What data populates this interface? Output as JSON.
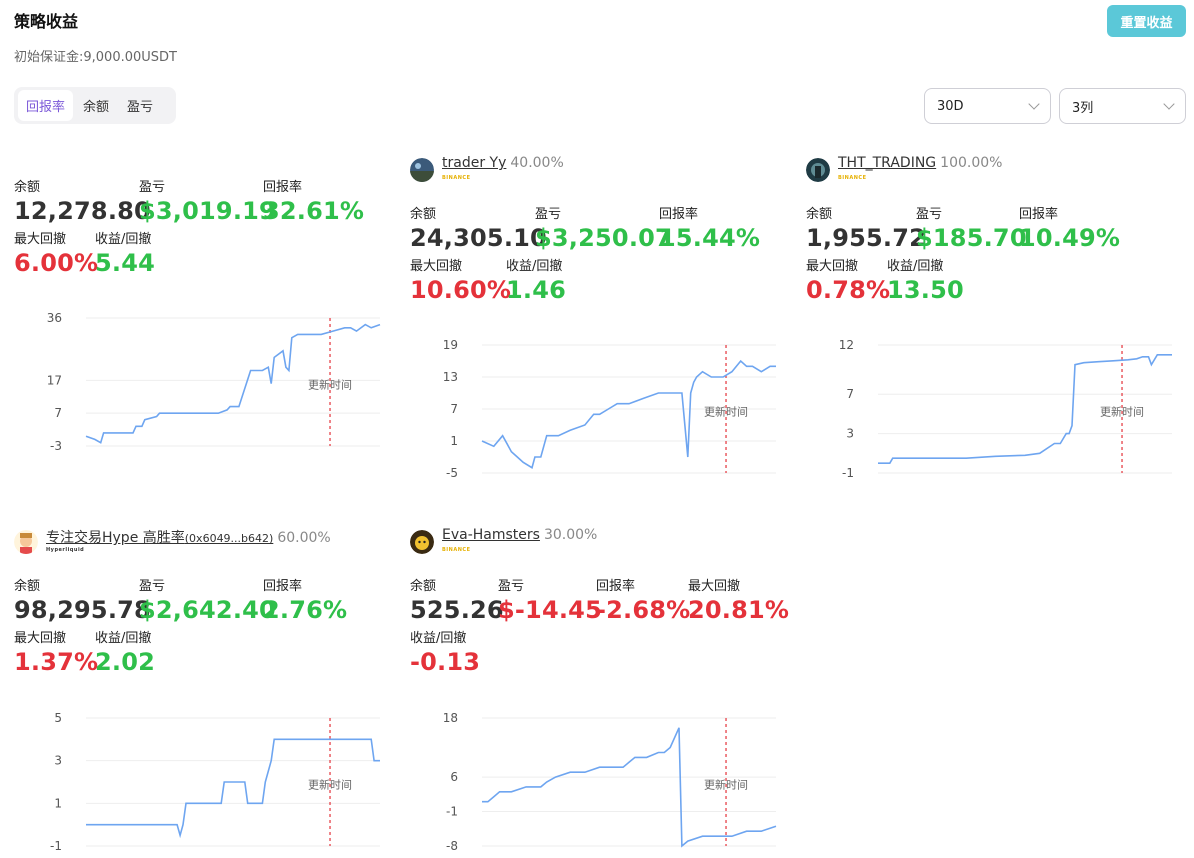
{
  "header": {
    "title": "策略收益",
    "subtitle": "初始保证金:9,000.00USDT",
    "reset_button": "重置收益"
  },
  "tabs": [
    {
      "label": "回报率",
      "active": true
    },
    {
      "label": "余额",
      "active": false
    },
    {
      "label": "盈亏",
      "active": false
    }
  ],
  "filters": {
    "period": "30D",
    "columns": "3列"
  },
  "labels": {
    "balance": "余额",
    "pnl": "盈亏",
    "roi": "回报率",
    "max_drawdown": "最大回撤",
    "return_drawdown": "收益/回撤",
    "update_time": "更新时间"
  },
  "colors": {
    "green": "#2fbf4a",
    "red": "#e4323a",
    "accent": "#7b57d8",
    "reset_button": "#5bc8d8",
    "line": "#6ea5f0",
    "marker": "#e4323a"
  },
  "cards": [
    {
      "name": "",
      "allocation": "",
      "exchange": "",
      "balance": "12,278.80",
      "pnl": "$3,019.19",
      "roi": "32.61%",
      "max_drawdown": "6.00%",
      "return_drawdown": "5.44",
      "pnl_color": "green",
      "roi_color": "green",
      "rd_color": "green"
    },
    {
      "name": "trader Yy",
      "allocation": "40.00%",
      "exchange": "BINANCE",
      "avatar": "avatar-landscape",
      "balance": "24,305.10",
      "pnl": "$3,250.07",
      "roi": "15.44%",
      "max_drawdown": "10.60%",
      "return_drawdown": "1.46",
      "pnl_color": "green",
      "roi_color": "green",
      "rd_color": "green"
    },
    {
      "name": "THT_TRADING",
      "allocation": "100.00%",
      "exchange": "BINANCE",
      "avatar": "avatar-dark",
      "balance": "1,955.72",
      "pnl": "$185.70",
      "roi": "10.49%",
      "max_drawdown": "0.78%",
      "return_drawdown": "13.50",
      "pnl_color": "green",
      "roi_color": "green",
      "rd_color": "green"
    },
    {
      "name": "专注交易Hype 高胜率",
      "address": "(0x6049...b642)",
      "allocation": "60.00%",
      "exchange": "Hyperliquid",
      "avatar": "avatar-cartoon",
      "balance": "98,295.78",
      "pnl": "$2,642.40",
      "roi": "2.76%",
      "max_drawdown": "1.37%",
      "return_drawdown": "2.02",
      "pnl_color": "green",
      "roi_color": "green",
      "rd_color": "green"
    },
    {
      "name": "Eva-Hamsters",
      "allocation": "30.00%",
      "exchange": "BINANCE",
      "avatar": "avatar-hamster",
      "balance": "525.26",
      "pnl": "$-14.45",
      "roi": "-2.68%",
      "max_drawdown": "20.81%",
      "return_drawdown": "-0.13",
      "pnl_color": "red",
      "roi_color": "red",
      "rd_color": "red"
    }
  ],
  "chart_data": [
    {
      "type": "line",
      "title": "",
      "xlabel": "",
      "ylabel": "",
      "yticks": [
        36,
        17,
        7,
        -3
      ],
      "ylim": [
        -3,
        36
      ],
      "grid": true,
      "update_marker_x": 0.83,
      "series": [
        {
          "name": "",
          "x": [
            0,
            0.03,
            0.05,
            0.06,
            0.07,
            0.1,
            0.16,
            0.17,
            0.19,
            0.2,
            0.24,
            0.25,
            0.3,
            0.4,
            0.45,
            0.48,
            0.49,
            0.52,
            0.56,
            0.6,
            0.62,
            0.63,
            0.64,
            0.67,
            0.68,
            0.69,
            0.7,
            0.72,
            0.76,
            0.8,
            0.84,
            0.88,
            0.9,
            0.92,
            0.95,
            0.97,
            1.0
          ],
          "y": [
            0,
            -1,
            -2,
            1,
            1,
            1,
            1,
            3,
            3,
            5,
            6,
            7,
            7,
            7,
            7,
            8,
            9,
            9,
            20,
            20,
            21,
            16,
            24,
            26,
            21,
            20,
            30,
            31,
            31,
            31,
            32,
            33,
            33,
            32,
            34,
            33,
            34
          ]
        }
      ]
    },
    {
      "type": "line",
      "title": "",
      "xlabel": "",
      "ylabel": "",
      "yticks": [
        19,
        13,
        7,
        1,
        -5
      ],
      "ylim": [
        -5,
        19
      ],
      "grid": true,
      "update_marker_x": 0.83,
      "series": [
        {
          "name": "",
          "x": [
            0,
            0.04,
            0.07,
            0.1,
            0.12,
            0.14,
            0.17,
            0.18,
            0.2,
            0.22,
            0.24,
            0.26,
            0.3,
            0.35,
            0.38,
            0.4,
            0.43,
            0.46,
            0.5,
            0.55,
            0.6,
            0.65,
            0.68,
            0.7,
            0.71,
            0.72,
            0.73,
            0.75,
            0.78,
            0.82,
            0.85,
            0.88,
            0.9,
            0.92,
            0.95,
            0.98,
            1.0
          ],
          "y": [
            1,
            0,
            2,
            -1,
            -2,
            -3,
            -4,
            -2,
            -2,
            2,
            2,
            2,
            3,
            4,
            6,
            6,
            7,
            8,
            8,
            9,
            10,
            10,
            10,
            -2,
            10,
            12,
            13,
            14,
            13,
            13,
            14,
            16,
            15,
            15,
            14,
            15,
            15
          ]
        }
      ]
    },
    {
      "type": "line",
      "title": "",
      "xlabel": "",
      "ylabel": "",
      "yticks": [
        12,
        7,
        3,
        -1
      ],
      "ylim": [
        -1,
        12
      ],
      "grid": true,
      "update_marker_x": 0.83,
      "series": [
        {
          "name": "",
          "x": [
            0,
            0.02,
            0.04,
            0.05,
            0.06,
            0.1,
            0.2,
            0.3,
            0.4,
            0.5,
            0.55,
            0.6,
            0.62,
            0.64,
            0.65,
            0.66,
            0.67,
            0.7,
            0.75,
            0.8,
            0.85,
            0.88,
            0.9,
            0.92,
            0.93,
            0.95,
            1.0
          ],
          "y": [
            0,
            0,
            0,
            0.5,
            0.5,
            0.5,
            0.5,
            0.5,
            0.7,
            0.8,
            1,
            2,
            2,
            3,
            3,
            3.8,
            10,
            10.2,
            10.3,
            10.4,
            10.5,
            10.6,
            10.8,
            10.8,
            10,
            11,
            11
          ]
        }
      ]
    },
    {
      "type": "line",
      "title": "",
      "xlabel": "",
      "ylabel": "",
      "yticks": [
        5,
        3,
        1,
        -1
      ],
      "ylim": [
        -1,
        5
      ],
      "grid": true,
      "update_marker_x": 0.83,
      "series": [
        {
          "name": "",
          "x": [
            0,
            0.1,
            0.2,
            0.31,
            0.32,
            0.33,
            0.34,
            0.4,
            0.46,
            0.47,
            0.54,
            0.55,
            0.59,
            0.6,
            0.61,
            0.63,
            0.64,
            0.68,
            0.75,
            0.85,
            0.94,
            0.95,
            0.97,
            0.98,
            1.0
          ],
          "y": [
            0,
            0,
            0,
            0,
            -0.5,
            0,
            1,
            1,
            1,
            2,
            2,
            1,
            1,
            1,
            2,
            3,
            4,
            4,
            4,
            4,
            4,
            4,
            4,
            3,
            3
          ]
        }
      ]
    },
    {
      "type": "line",
      "title": "",
      "xlabel": "",
      "ylabel": "",
      "yticks": [
        18,
        6,
        -1,
        -8
      ],
      "ylim": [
        -8,
        18
      ],
      "grid": true,
      "update_marker_x": 0.83,
      "series": [
        {
          "name": "",
          "x": [
            0,
            0.02,
            0.04,
            0.06,
            0.08,
            0.1,
            0.15,
            0.2,
            0.22,
            0.25,
            0.3,
            0.35,
            0.4,
            0.45,
            0.48,
            0.5,
            0.52,
            0.56,
            0.6,
            0.62,
            0.64,
            0.67,
            0.68,
            0.7,
            0.75,
            0.8,
            0.85,
            0.9,
            0.95,
            1.0
          ],
          "y": [
            1,
            1,
            2,
            3,
            3,
            3,
            4,
            4,
            5,
            6,
            7,
            7,
            8,
            8,
            8,
            9,
            10,
            10,
            11,
            11,
            12,
            16,
            -8,
            -7,
            -6,
            -6,
            -6,
            -5,
            -5,
            -4
          ]
        }
      ]
    }
  ]
}
